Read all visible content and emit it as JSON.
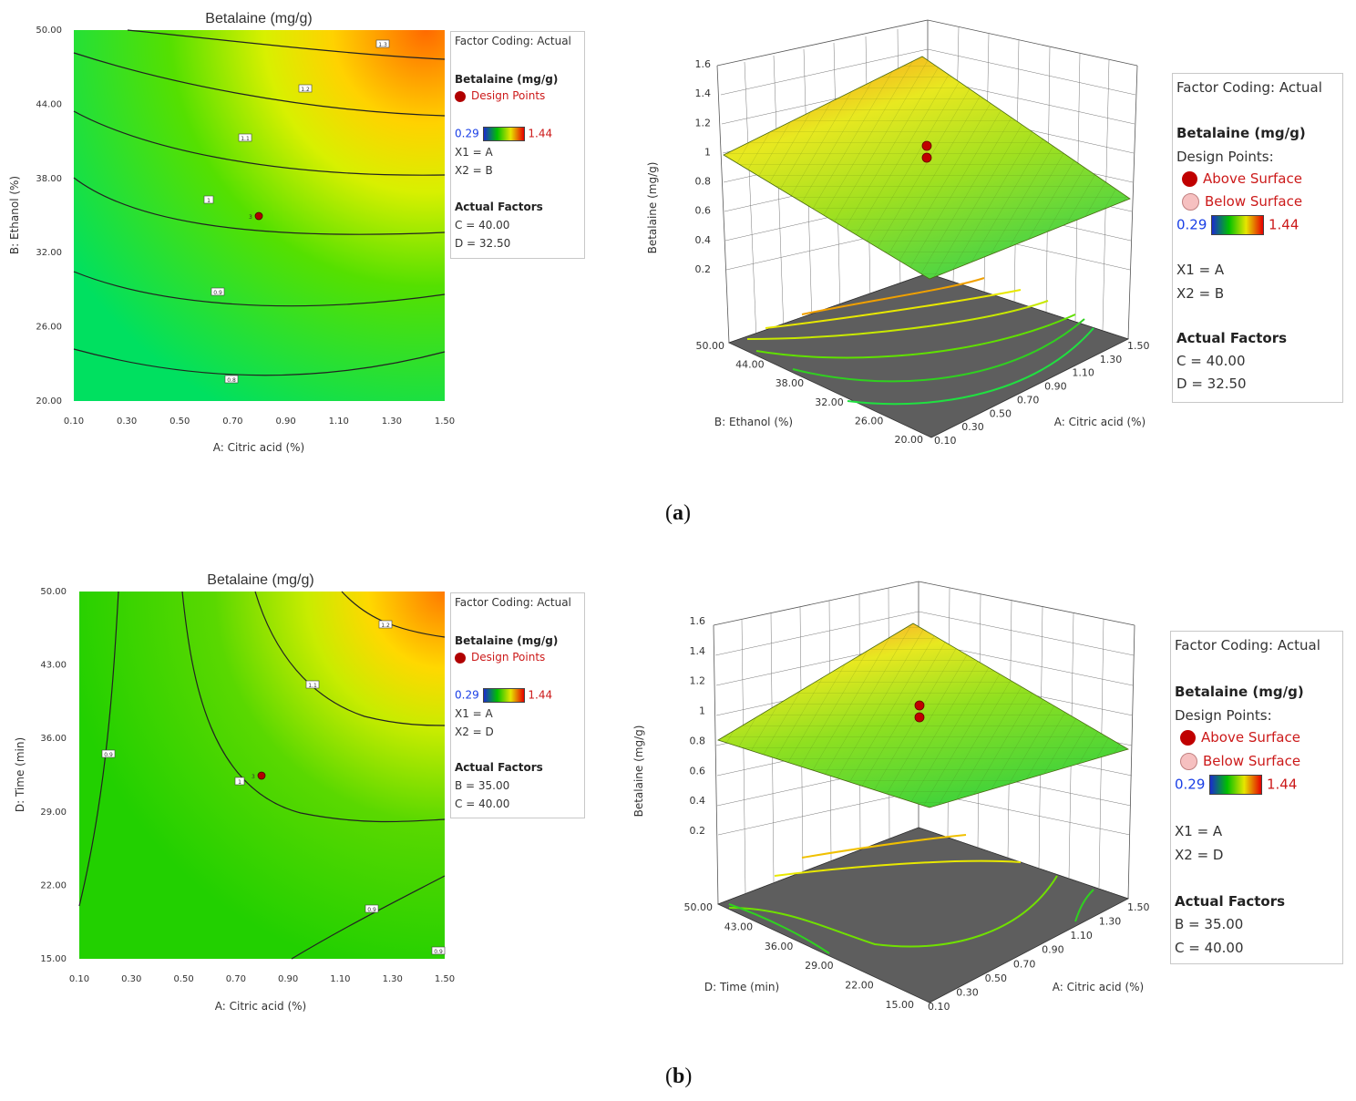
{
  "figure": {
    "caption_a": "a",
    "caption_b": "b"
  },
  "panel_a": {
    "contour": {
      "title": "Betalaine (mg/g)",
      "xlabel": "A: Citric acid (%)",
      "ylabel": "B: Ethanol  (%)",
      "xticks": [
        "0.10",
        "0.30",
        "0.50",
        "0.70",
        "0.90",
        "1.10",
        "1.30",
        "1.50"
      ],
      "yticks": [
        "20.00",
        "26.00",
        "32.00",
        "38.00",
        "44.00",
        "50.00"
      ],
      "design_point_label": "3"
    },
    "legend_small": {
      "coding": "Factor Coding: Actual",
      "response": "Betalaine (mg/g)",
      "design_points": "Design Points",
      "min": "0.29",
      "max": "1.44",
      "x1": "X1 = A",
      "x2": "X2 = B",
      "actual_title": "Actual Factors",
      "f1": "C = 40.00",
      "f2": "D = 32.50"
    },
    "surface": {
      "zlabel": "Betalaine (mg/g)",
      "zticks": [
        "0.2",
        "0.4",
        "0.6",
        "0.8",
        "1",
        "1.2",
        "1.4",
        "1.6"
      ],
      "left_label": "B: Ethanol  (%)",
      "left_ticks": [
        "50.00",
        "44.00",
        "38.00",
        "32.00",
        "26.00",
        "20.00"
      ],
      "right_label": "A: Citric acid (%)",
      "right_ticks": [
        "0.10",
        "0.30",
        "0.50",
        "0.70",
        "0.90",
        "1.10",
        "1.30",
        "1.50"
      ]
    },
    "legend_large": {
      "coding": "Factor Coding: Actual",
      "response": "Betalaine (mg/g)",
      "design_points": "Design Points:",
      "above": "Above Surface",
      "below": "Below Surface",
      "min": "0.29",
      "max": "1.44",
      "x1": "X1 = A",
      "x2": "X2 = B",
      "actual_title": "Actual Factors",
      "f1": "C = 40.00",
      "f2": "D = 32.50"
    }
  },
  "panel_b": {
    "contour": {
      "title": "Betalaine (mg/g)",
      "xlabel": "A: Citric acid (%)",
      "ylabel": "D: Time  (min)",
      "xticks": [
        "0.10",
        "0.30",
        "0.50",
        "0.70",
        "0.90",
        "1.10",
        "1.30",
        "1.50"
      ],
      "yticks": [
        "15.00",
        "22.00",
        "29.00",
        "36.00",
        "43.00",
        "50.00"
      ],
      "design_point_label": "3"
    },
    "legend_small": {
      "coding": "Factor Coding: Actual",
      "response": "Betalaine (mg/g)",
      "design_points": "Design Points",
      "min": "0.29",
      "max": "1.44",
      "x1": "X1 = A",
      "x2": "X2 = D",
      "actual_title": "Actual Factors",
      "f1": "B = 35.00",
      "f2": "C = 40.00"
    },
    "surface": {
      "zlabel": "Betalaine (mg/g)",
      "zticks": [
        "0.2",
        "0.4",
        "0.6",
        "0.8",
        "1",
        "1.2",
        "1.4",
        "1.6"
      ],
      "left_label": "D: Time  (min)",
      "left_ticks": [
        "50.00",
        "43.00",
        "36.00",
        "29.00",
        "22.00",
        "15.00"
      ],
      "right_label": "A: Citric acid (%)",
      "right_ticks": [
        "0.10",
        "0.30",
        "0.50",
        "0.70",
        "0.90",
        "1.10",
        "1.30",
        "1.50"
      ]
    },
    "legend_large": {
      "coding": "Factor Coding: Actual",
      "response": "Betalaine (mg/g)",
      "design_points": "Design Points:",
      "above": "Above Surface",
      "below": "Below Surface",
      "min": "0.29",
      "max": "1.44",
      "x1": "X1 = A",
      "x2": "X2 = D",
      "actual_title": "Actual Factors",
      "f1": "B = 35.00",
      "f2": "C = 40.00"
    }
  },
  "chart_data": [
    {
      "type": "contour",
      "title": "Betalaine (mg/g)",
      "xlabel": "A: Citric acid (%)",
      "ylabel": "B: Ethanol  (%)",
      "xlim": [
        0.1,
        1.5
      ],
      "ylim": [
        20.0,
        50.0
      ],
      "contour_levels": [
        0.8,
        0.9,
        1.0,
        1.1,
        1.2,
        1.3
      ],
      "color_range": [
        0.29,
        1.44
      ],
      "design_points": [
        {
          "x": 0.8,
          "y": 35.0,
          "replicates": 3
        }
      ]
    },
    {
      "type": "surface",
      "zlabel": "Betalaine (mg/g)",
      "zlim": [
        0.2,
        1.6
      ],
      "x_factor": "A: Citric acid (%)",
      "x_range": [
        0.1,
        1.5
      ],
      "y_factor": "B: Ethanol  (%)",
      "y_range": [
        20.0,
        50.0
      ],
      "design_points_z": [
        1.05,
        0.97
      ]
    },
    {
      "type": "contour",
      "title": "Betalaine (mg/g)",
      "xlabel": "A: Citric acid (%)",
      "ylabel": "D: Time  (min)",
      "xlim": [
        0.1,
        1.5
      ],
      "ylim": [
        15.0,
        50.0
      ],
      "contour_levels": [
        0.9,
        1.0,
        1.1,
        1.2
      ],
      "color_range": [
        0.29,
        1.44
      ],
      "design_points": [
        {
          "x": 0.8,
          "y": 32.5,
          "replicates": 3
        }
      ]
    },
    {
      "type": "surface",
      "zlabel": "Betalaine (mg/g)",
      "zlim": [
        0.2,
        1.6
      ],
      "x_factor": "A: Citric acid (%)",
      "x_range": [
        0.1,
        1.5
      ],
      "y_factor": "D: Time  (min)",
      "y_range": [
        15.0,
        50.0
      ],
      "design_points_z": [
        1.05,
        0.97
      ]
    }
  ]
}
